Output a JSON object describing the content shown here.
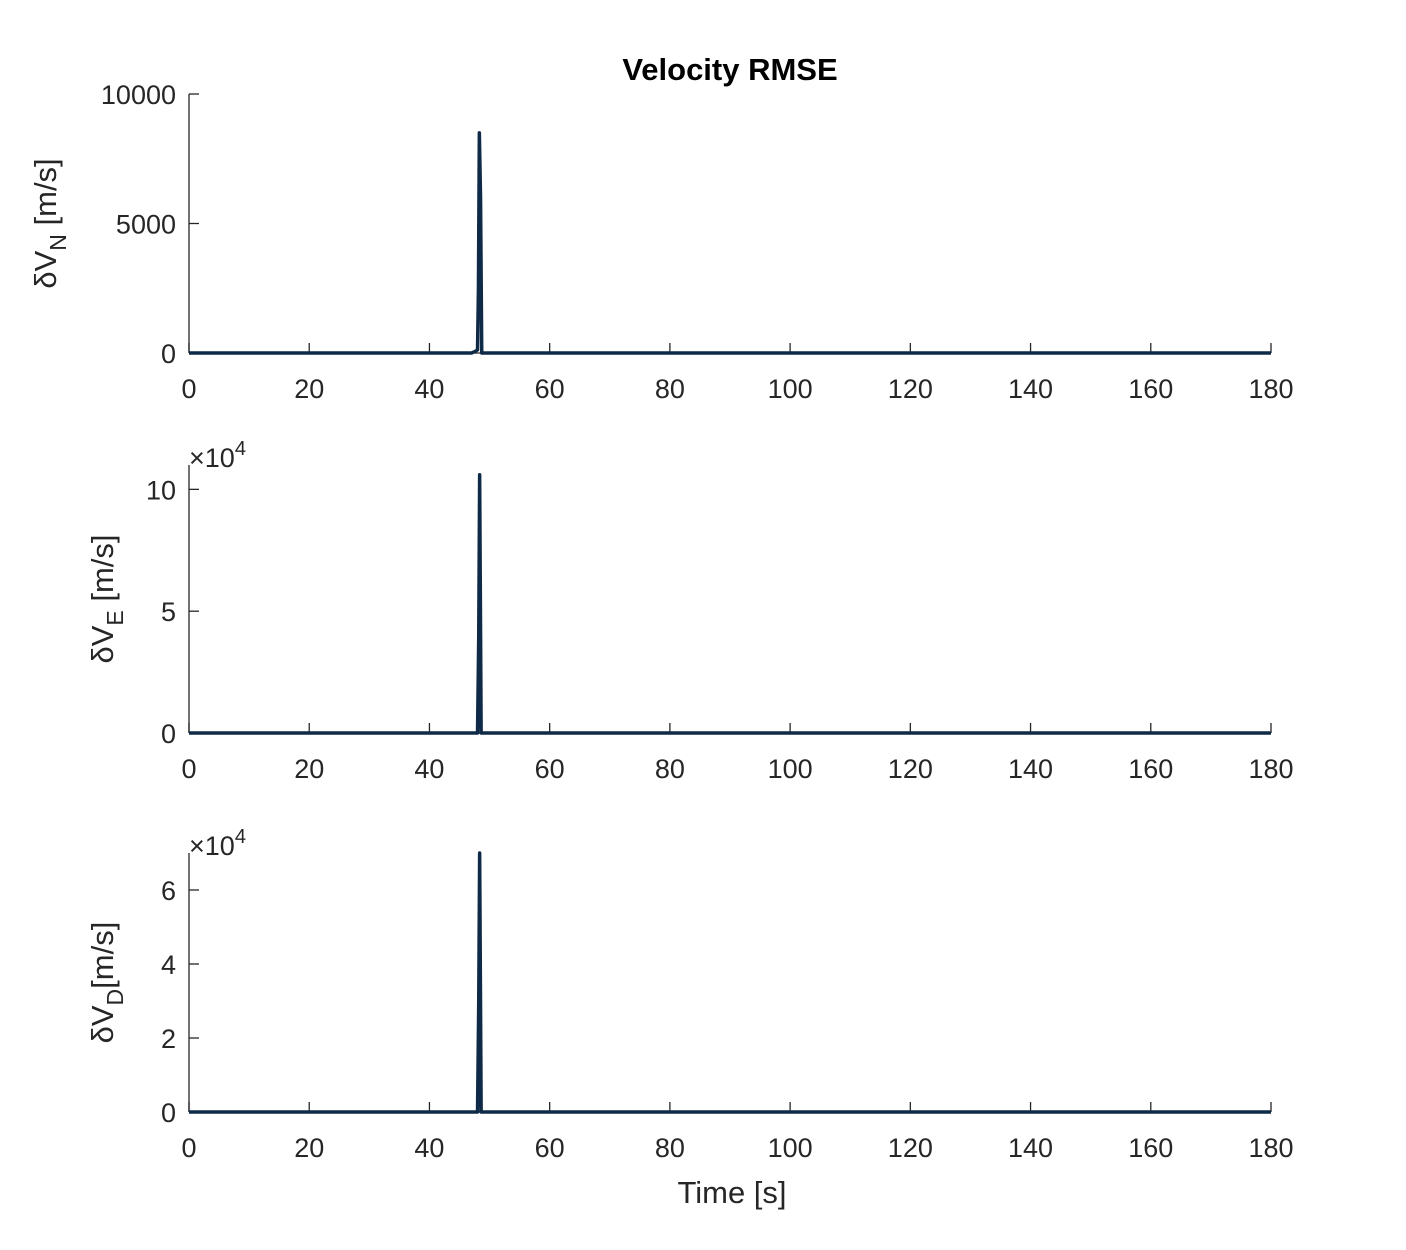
{
  "chart_data": [
    {
      "type": "line",
      "title": "Velocity RMSE",
      "ylabel_main": "δV",
      "ylabel_sub": "N",
      "ylabel_unit": " [m/s]",
      "xlabel": "",
      "xlim": [
        0,
        180
      ],
      "ylim": [
        0,
        10000
      ],
      "multiplier": "",
      "xticks": [
        0,
        20,
        40,
        60,
        80,
        100,
        120,
        140,
        160,
        180
      ],
      "yticks": [
        0,
        5000,
        10000
      ],
      "ytick_labels": [
        "0",
        "5000",
        "10000"
      ],
      "grid": false,
      "series": [
        {
          "color": "#0f2a47",
          "x": [
            0,
            47.0,
            47.6,
            48.0,
            48.15,
            48.3,
            48.5,
            48.7,
            180
          ],
          "y": [
            0,
            0,
            60,
            120,
            2500,
            8500,
            6000,
            0,
            0
          ]
        }
      ]
    },
    {
      "type": "line",
      "title": "",
      "ylabel_main": "δV",
      "ylabel_sub": "E",
      "ylabel_unit": " [m/s]",
      "xlabel": "",
      "xlim": [
        0,
        180
      ],
      "ylim": [
        0,
        11
      ],
      "multiplier": "×10",
      "multiplier_exp": "4",
      "xticks": [
        0,
        20,
        40,
        60,
        80,
        100,
        120,
        140,
        160,
        180
      ],
      "yticks": [
        0,
        5,
        10
      ],
      "ytick_labels": [
        "0",
        "5",
        "10"
      ],
      "grid": false,
      "series": [
        {
          "color": "#0f2a47",
          "x": [
            0,
            48.0,
            48.2,
            48.35,
            48.6,
            180
          ],
          "y": [
            0,
            0,
            4,
            10.6,
            0,
            0
          ]
        }
      ]
    },
    {
      "type": "line",
      "title": "",
      "ylabel_main": "δV",
      "ylabel_sub": "D",
      "ylabel_unit": "[m/s]",
      "xlabel": "Time [s]",
      "xlim": [
        0,
        180
      ],
      "ylim": [
        0,
        7
      ],
      "multiplier": "×10",
      "multiplier_exp": "4",
      "xticks": [
        0,
        20,
        40,
        60,
        80,
        100,
        120,
        140,
        160,
        180
      ],
      "yticks": [
        0,
        2,
        4,
        6
      ],
      "ytick_labels": [
        "0",
        "2",
        "4",
        "6"
      ],
      "grid": false,
      "series": [
        {
          "color": "#0f2a47",
          "x": [
            0,
            48.0,
            48.2,
            48.35,
            48.6,
            180
          ],
          "y": [
            0,
            0,
            3,
            7.0,
            0,
            0
          ]
        }
      ]
    }
  ]
}
